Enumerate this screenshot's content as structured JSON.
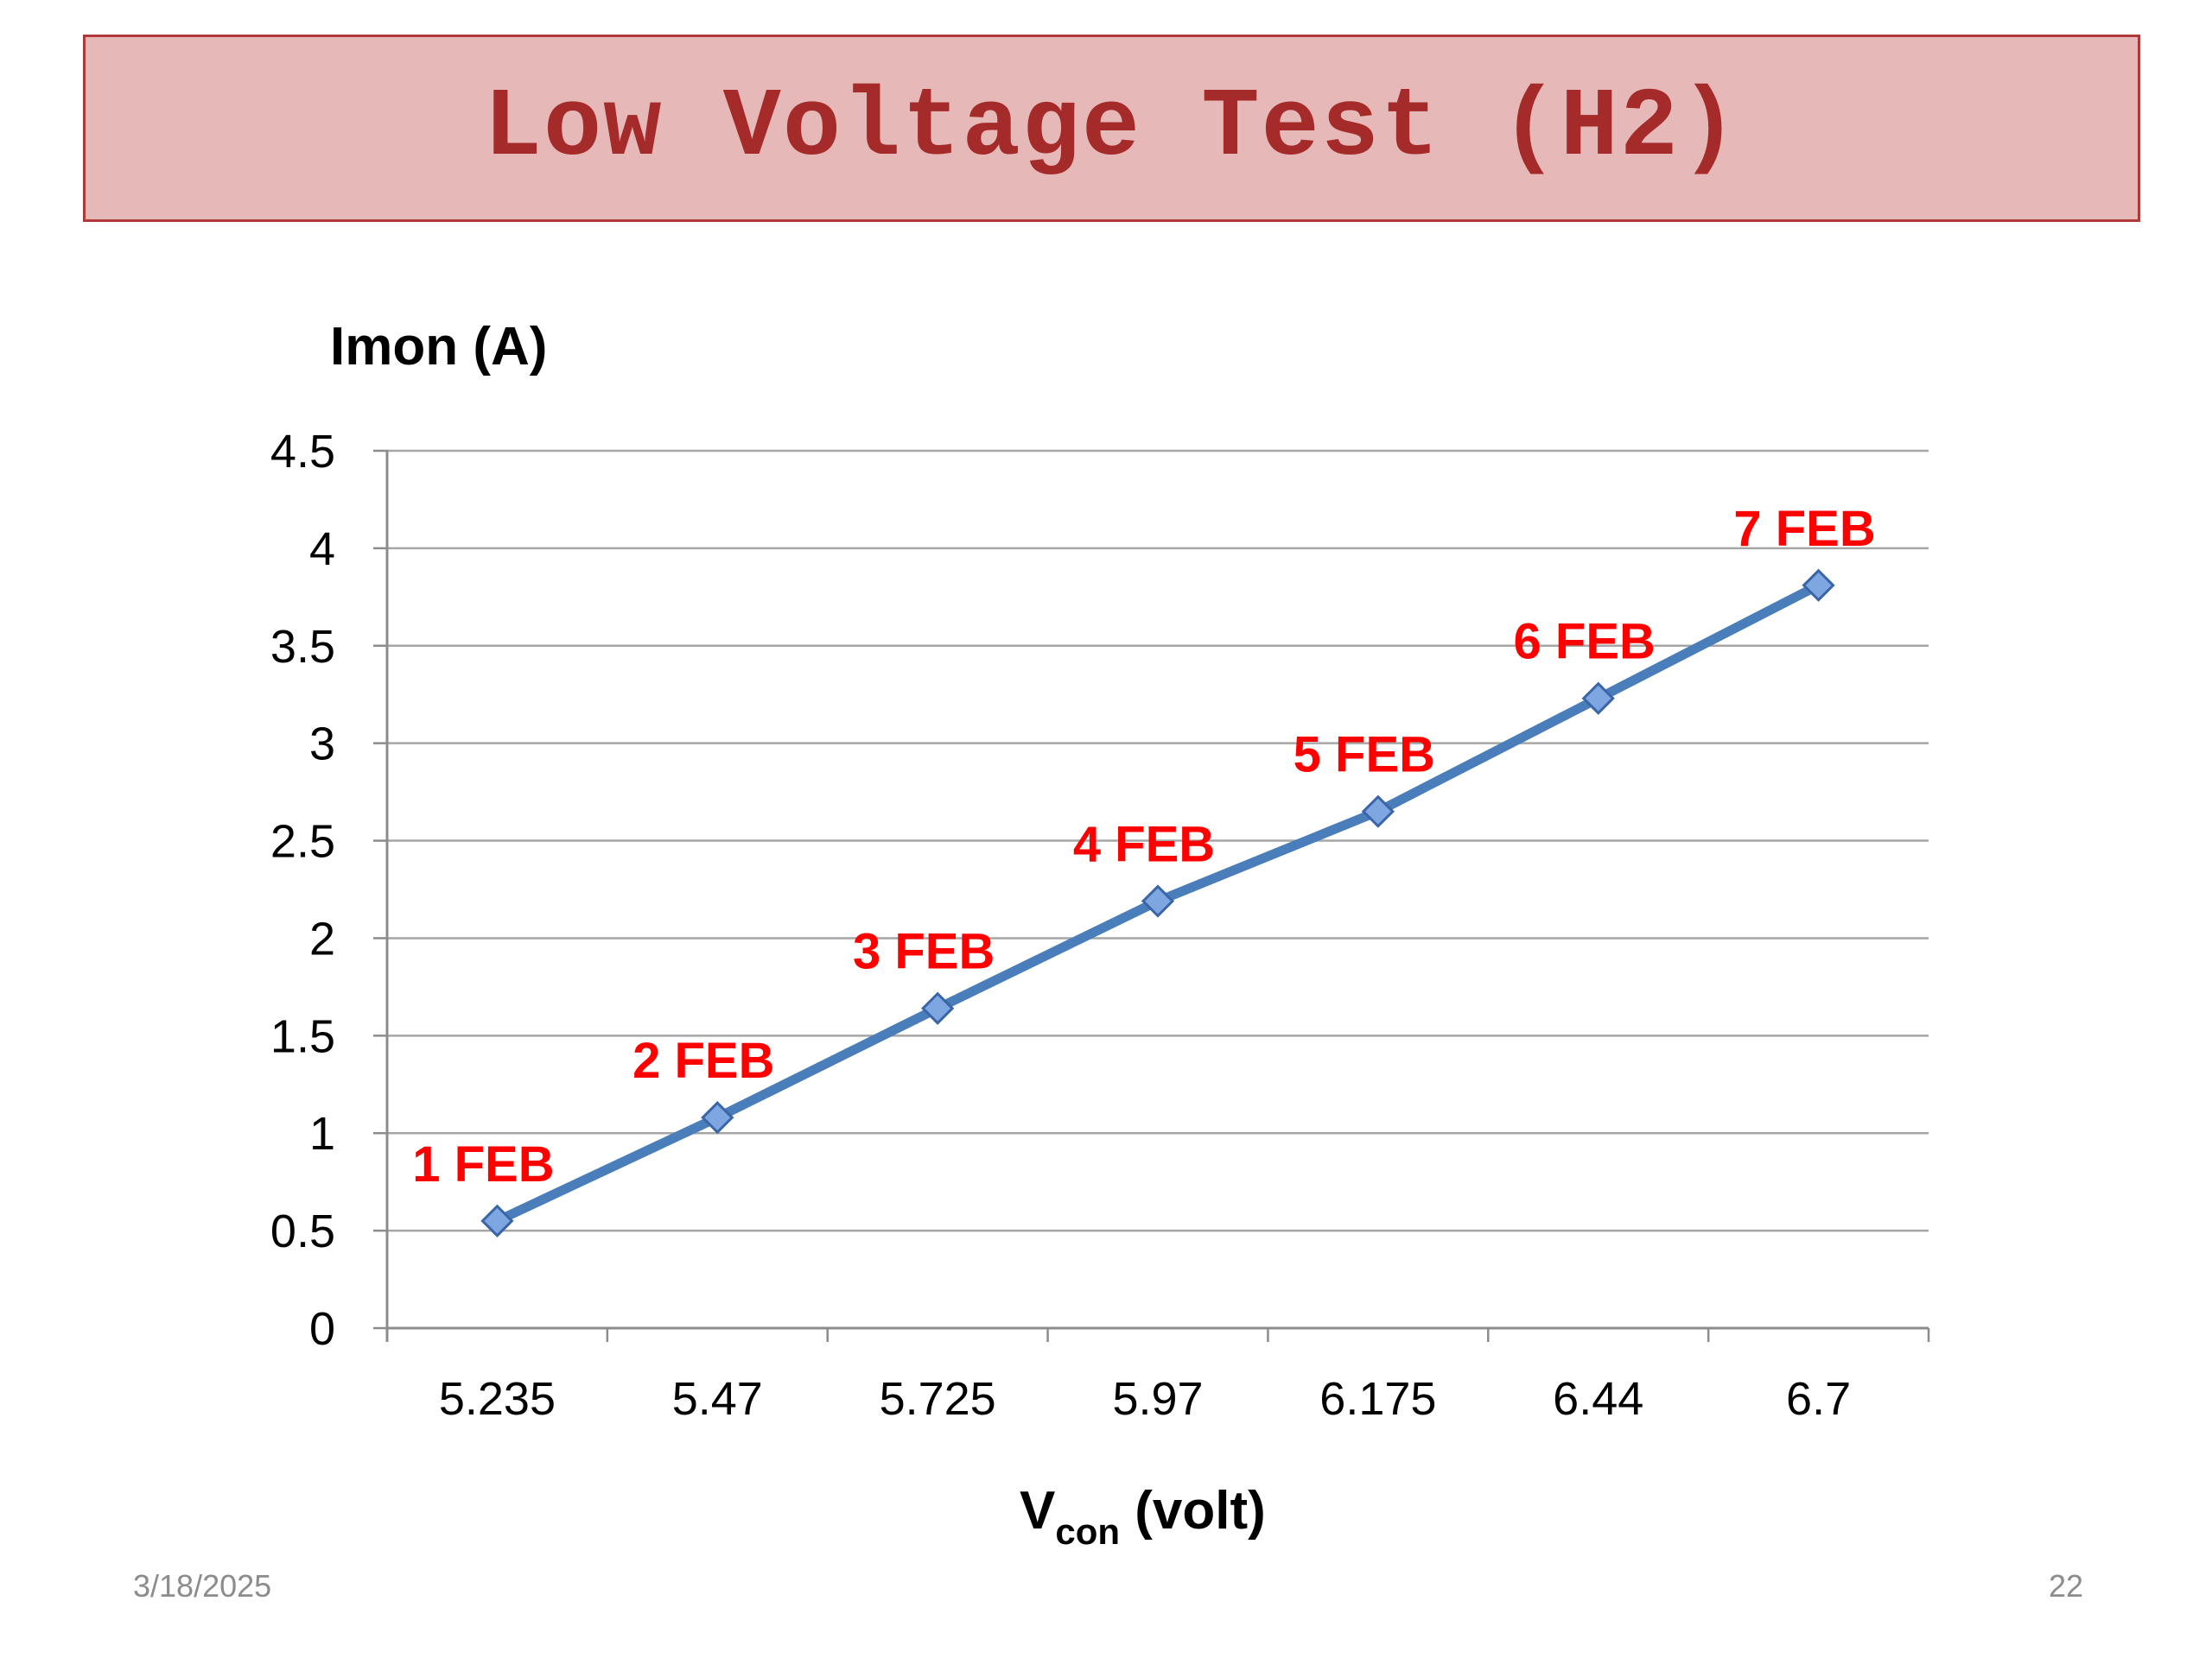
{
  "slide": {
    "title": "Low Voltage Test (H2)",
    "date": "3/18/2025",
    "page_number": "22"
  },
  "chart_data": {
    "type": "line",
    "ylabel": "Imon (A)",
    "xlabel_main": "V",
    "xlabel_sub": "con",
    "xlabel_tail": " (volt)",
    "categories": [
      "5.235",
      "5.47",
      "5.725",
      "5.97",
      "6.175",
      "6.44",
      "6.7"
    ],
    "series": [
      {
        "values": [
          0.55,
          1.08,
          1.64,
          2.19,
          2.65,
          3.23,
          3.81
        ],
        "point_labels": [
          "1 FEB",
          "2 FEB",
          "3 FEB",
          "4 FEB",
          "5 FEB",
          "6 FEB",
          "7 FEB"
        ]
      }
    ],
    "ylim": [
      0,
      4.5
    ],
    "yticks": [
      "0",
      "0.5",
      "1",
      "1.5",
      "2",
      "2.5",
      "3",
      "3.5",
      "4",
      "4.5"
    ],
    "grid": true,
    "legend": "none",
    "colors": {
      "line": "#4a7ebb",
      "marker_fill": "#7ea6e0",
      "marker_stroke": "#3a66a8",
      "point_label": "#ff0000",
      "grid": "#a6a6a6"
    }
  }
}
